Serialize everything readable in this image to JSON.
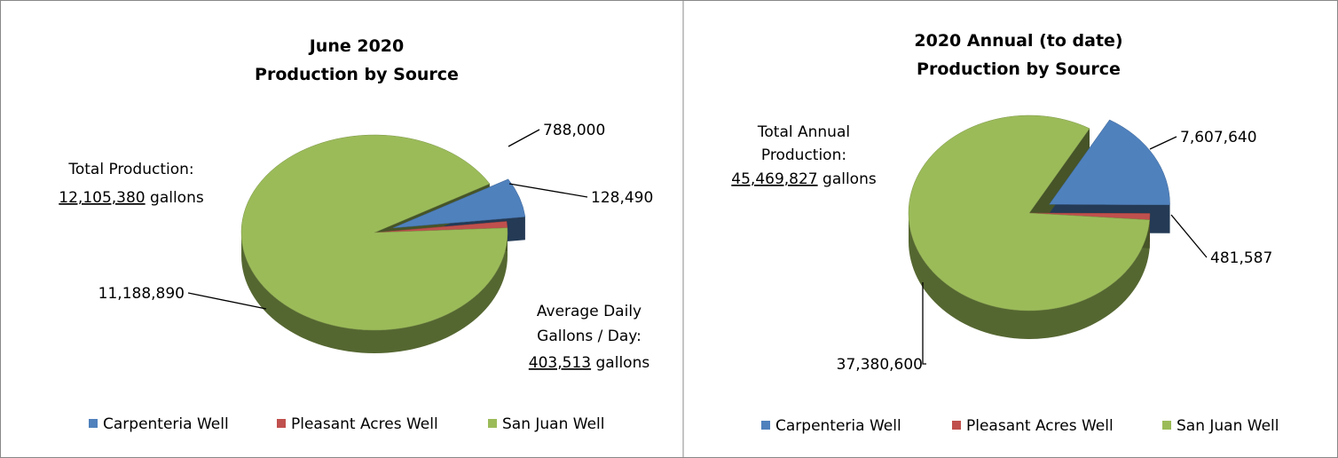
{
  "chart_data": [
    {
      "type": "pie",
      "title": "June 2020",
      "subtitle": "Production by Source",
      "categories": [
        "Carpenteria Well",
        "Pleasant Acres Well",
        "San Juan Well"
      ],
      "values": [
        788000,
        128490,
        11188890
      ],
      "value_labels": [
        "788,000",
        "128,490",
        "11,188,890"
      ],
      "colors": [
        "#4f81bd",
        "#c0504d",
        "#9bbb59"
      ],
      "legend": "bottom",
      "annotations": [
        "Total Production:",
        "12,105,380",
        "gallons",
        "Average Daily",
        "Gallons / Day:",
        "403,513",
        "gallons"
      ]
    },
    {
      "type": "pie",
      "title": "2020 Annual (to date)",
      "subtitle": "Production by Source",
      "categories": [
        "Carpenteria Well",
        "Pleasant Acres Well",
        "San Juan Well"
      ],
      "values": [
        7607640,
        481587,
        37380600
      ],
      "value_labels": [
        "7,607,640",
        "481,587",
        "37,380,600"
      ],
      "colors": [
        "#4f81bd",
        "#c0504d",
        "#9bbb59"
      ],
      "legend": "bottom",
      "annotations": [
        "Total Annual",
        "Production:",
        "45,469,827",
        "gallons"
      ]
    }
  ]
}
